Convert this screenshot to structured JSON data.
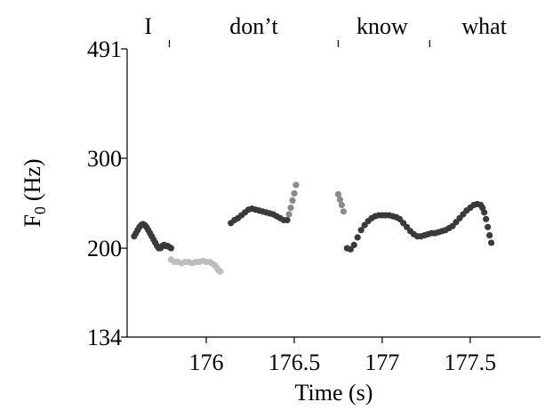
{
  "chart_data": {
    "type": "scatter",
    "title": "",
    "xlabel": "Time (s)",
    "ylabel": {
      "main": "F",
      "sub": "0",
      "unit": "(Hz)"
    },
    "xlim": [
      175.55,
      177.9
    ],
    "ylim": [
      134,
      491
    ],
    "y_scale": "log",
    "x_ticks": [
      176,
      176.5,
      177,
      177.5
    ],
    "x_tick_labels": [
      "176",
      "176.5",
      "177",
      "177.5"
    ],
    "y_ticks": [
      134,
      200,
      300,
      491
    ],
    "y_tick_labels": [
      "134",
      "200",
      "300",
      "491"
    ],
    "grid": false,
    "word_boundaries": [
      175.55,
      175.79,
      176.75,
      177.27,
      177.9
    ],
    "words": [
      {
        "text": "I",
        "center": 175.67
      },
      {
        "text": "don’t",
        "center": 176.27
      },
      {
        "text": "know",
        "center": 177.0
      },
      {
        "text": "what",
        "center": 177.58
      }
    ],
    "colors": {
      "dark": "#3a3a3a",
      "mid": "#8a8a8a",
      "light": "#bdbdbd"
    },
    "series": [
      {
        "shade": "dark",
        "points": [
          [
            175.59,
            211
          ],
          [
            175.6,
            214
          ],
          [
            175.61,
            217
          ],
          [
            175.62,
            220
          ],
          [
            175.63,
            222
          ],
          [
            175.64,
            223
          ],
          [
            175.65,
            222
          ],
          [
            175.66,
            220
          ],
          [
            175.67,
            217
          ],
          [
            175.68,
            214
          ],
          [
            175.69,
            211
          ],
          [
            175.7,
            208
          ],
          [
            175.71,
            205
          ],
          [
            175.72,
            202
          ],
          [
            175.73,
            200
          ],
          [
            175.74,
            200
          ],
          [
            175.75,
            202
          ],
          [
            175.76,
            203
          ],
          [
            175.77,
            202
          ],
          [
            175.78,
            202
          ],
          [
            175.79,
            201
          ],
          [
            175.8,
            200
          ]
        ]
      },
      {
        "shade": "light",
        "points": [
          [
            175.8,
            190
          ],
          [
            175.82,
            188
          ],
          [
            175.84,
            188
          ],
          [
            175.86,
            187
          ],
          [
            175.88,
            188
          ],
          [
            175.9,
            188
          ],
          [
            175.92,
            187
          ],
          [
            175.94,
            188
          ],
          [
            175.96,
            188
          ],
          [
            175.98,
            189
          ],
          [
            176.0,
            188
          ],
          [
            176.02,
            188
          ],
          [
            176.03,
            187
          ],
          [
            176.04,
            186
          ],
          [
            176.05,
            185
          ],
          [
            176.06,
            183
          ],
          [
            176.07,
            181
          ],
          [
            176.08,
            180
          ]
        ]
      },
      {
        "shade": "dark",
        "points": [
          [
            176.14,
            224
          ],
          [
            176.16,
            227
          ],
          [
            176.18,
            229
          ],
          [
            176.2,
            232
          ],
          [
            176.22,
            235
          ],
          [
            176.24,
            238
          ],
          [
            176.26,
            239
          ],
          [
            176.28,
            238
          ],
          [
            176.3,
            237
          ],
          [
            176.32,
            236
          ],
          [
            176.34,
            235
          ],
          [
            176.36,
            234
          ],
          [
            176.38,
            233
          ],
          [
            176.4,
            231
          ],
          [
            176.42,
            229
          ],
          [
            176.44,
            227
          ],
          [
            176.46,
            227
          ]
        ]
      },
      {
        "shade": "mid",
        "points": [
          [
            176.47,
            233
          ],
          [
            176.48,
            240
          ],
          [
            176.49,
            248
          ],
          [
            176.5,
            256
          ],
          [
            176.51,
            266
          ]
        ]
      },
      {
        "shade": "mid",
        "points": [
          [
            176.75,
            255
          ],
          [
            176.76,
            249
          ],
          [
            176.77,
            243
          ],
          [
            176.78,
            236
          ]
        ]
      },
      {
        "shade": "dark",
        "points": [
          [
            176.8,
            200
          ],
          [
            176.82,
            199
          ],
          [
            176.84,
            203
          ],
          [
            176.86,
            210
          ],
          [
            176.88,
            217
          ],
          [
            176.9,
            222
          ],
          [
            176.92,
            226
          ],
          [
            176.94,
            229
          ],
          [
            176.96,
            231
          ],
          [
            176.98,
            232
          ],
          [
            177.0,
            232
          ],
          [
            177.02,
            232
          ],
          [
            177.04,
            232
          ],
          [
            177.06,
            231
          ],
          [
            177.08,
            230
          ],
          [
            177.1,
            228
          ],
          [
            177.12,
            224
          ],
          [
            177.14,
            220
          ],
          [
            177.16,
            216
          ],
          [
            177.18,
            213
          ],
          [
            177.2,
            211
          ],
          [
            177.22,
            211
          ],
          [
            177.24,
            212
          ],
          [
            177.26,
            213
          ],
          [
            177.28,
            214
          ],
          [
            177.3,
            214
          ],
          [
            177.32,
            215
          ],
          [
            177.34,
            216
          ],
          [
            177.36,
            217
          ],
          [
            177.38,
            219
          ],
          [
            177.4,
            221
          ],
          [
            177.42,
            225
          ],
          [
            177.44,
            229
          ],
          [
            177.46,
            233
          ],
          [
            177.48,
            237
          ],
          [
            177.5,
            240
          ],
          [
            177.52,
            243
          ],
          [
            177.54,
            244
          ],
          [
            177.56,
            243
          ],
          [
            177.57,
            240
          ],
          [
            177.58,
            235
          ],
          [
            177.59,
            228
          ],
          [
            177.6,
            220
          ],
          [
            177.61,
            212
          ],
          [
            177.62,
            205
          ]
        ]
      }
    ]
  }
}
